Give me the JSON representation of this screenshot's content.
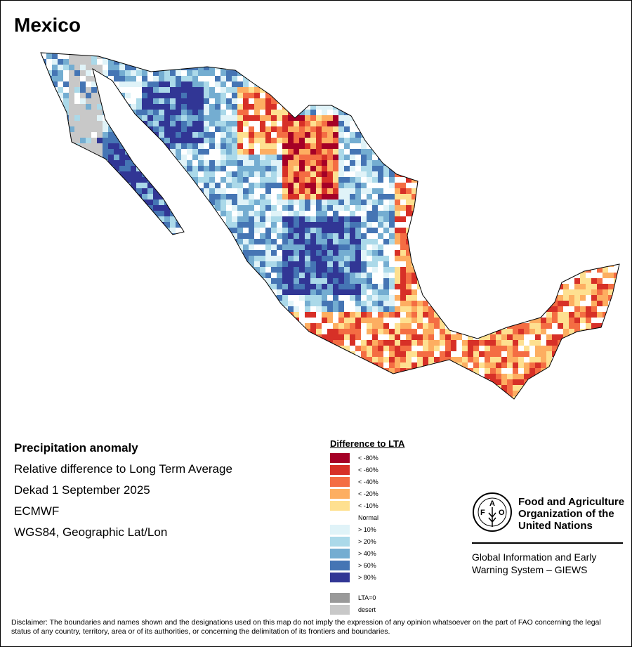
{
  "title": "Mexico",
  "info": {
    "heading": "Precipitation anomaly",
    "line1": "Relative difference to Long Term Average",
    "line2": "Dekad 1 September 2025",
    "line3": "ECMWF",
    "line4": "WGS84, Geographic Lat/Lon"
  },
  "legend": {
    "title": "Difference to LTA",
    "items": [
      {
        "label": "< -80%",
        "color": "#a50026"
      },
      {
        "label": "< -60%",
        "color": "#d73027"
      },
      {
        "label": "< -40%",
        "color": "#f46d43"
      },
      {
        "label": "< -20%",
        "color": "#fdae61"
      },
      {
        "label": "< -10%",
        "color": "#fee090"
      },
      {
        "label": "Normal",
        "color": "#ffffff"
      },
      {
        "label": "> 10%",
        "color": "#e0f3f8"
      },
      {
        "label": "> 20%",
        "color": "#abd9e9"
      },
      {
        "label": "> 40%",
        "color": "#74add1"
      },
      {
        "label": "> 60%",
        "color": "#4575b4"
      },
      {
        "label": "> 80%",
        "color": "#313695"
      }
    ],
    "extra": [
      {
        "label": "LTA=0",
        "color": "#999999"
      },
      {
        "label": "desert",
        "color": "#c8c8c8"
      }
    ]
  },
  "logo": {
    "org_line1": "Food and Agriculture",
    "org_line2": "Organization of the",
    "org_line3": "United Nations",
    "emblem_text": "FAO FIAT PANIS",
    "system_line1": "Global Information and Early",
    "system_line2": "Warning System – GIEWS"
  },
  "disclaimer": "Disclaimer: The boundaries and names shown and the designations used on this map do not imply the expression of any opinion whatsoever on the part of FAO concerning the legal status of any country, territory, area or of its authorities, or concerning the delimitation of its frontiers and boundaries."
}
